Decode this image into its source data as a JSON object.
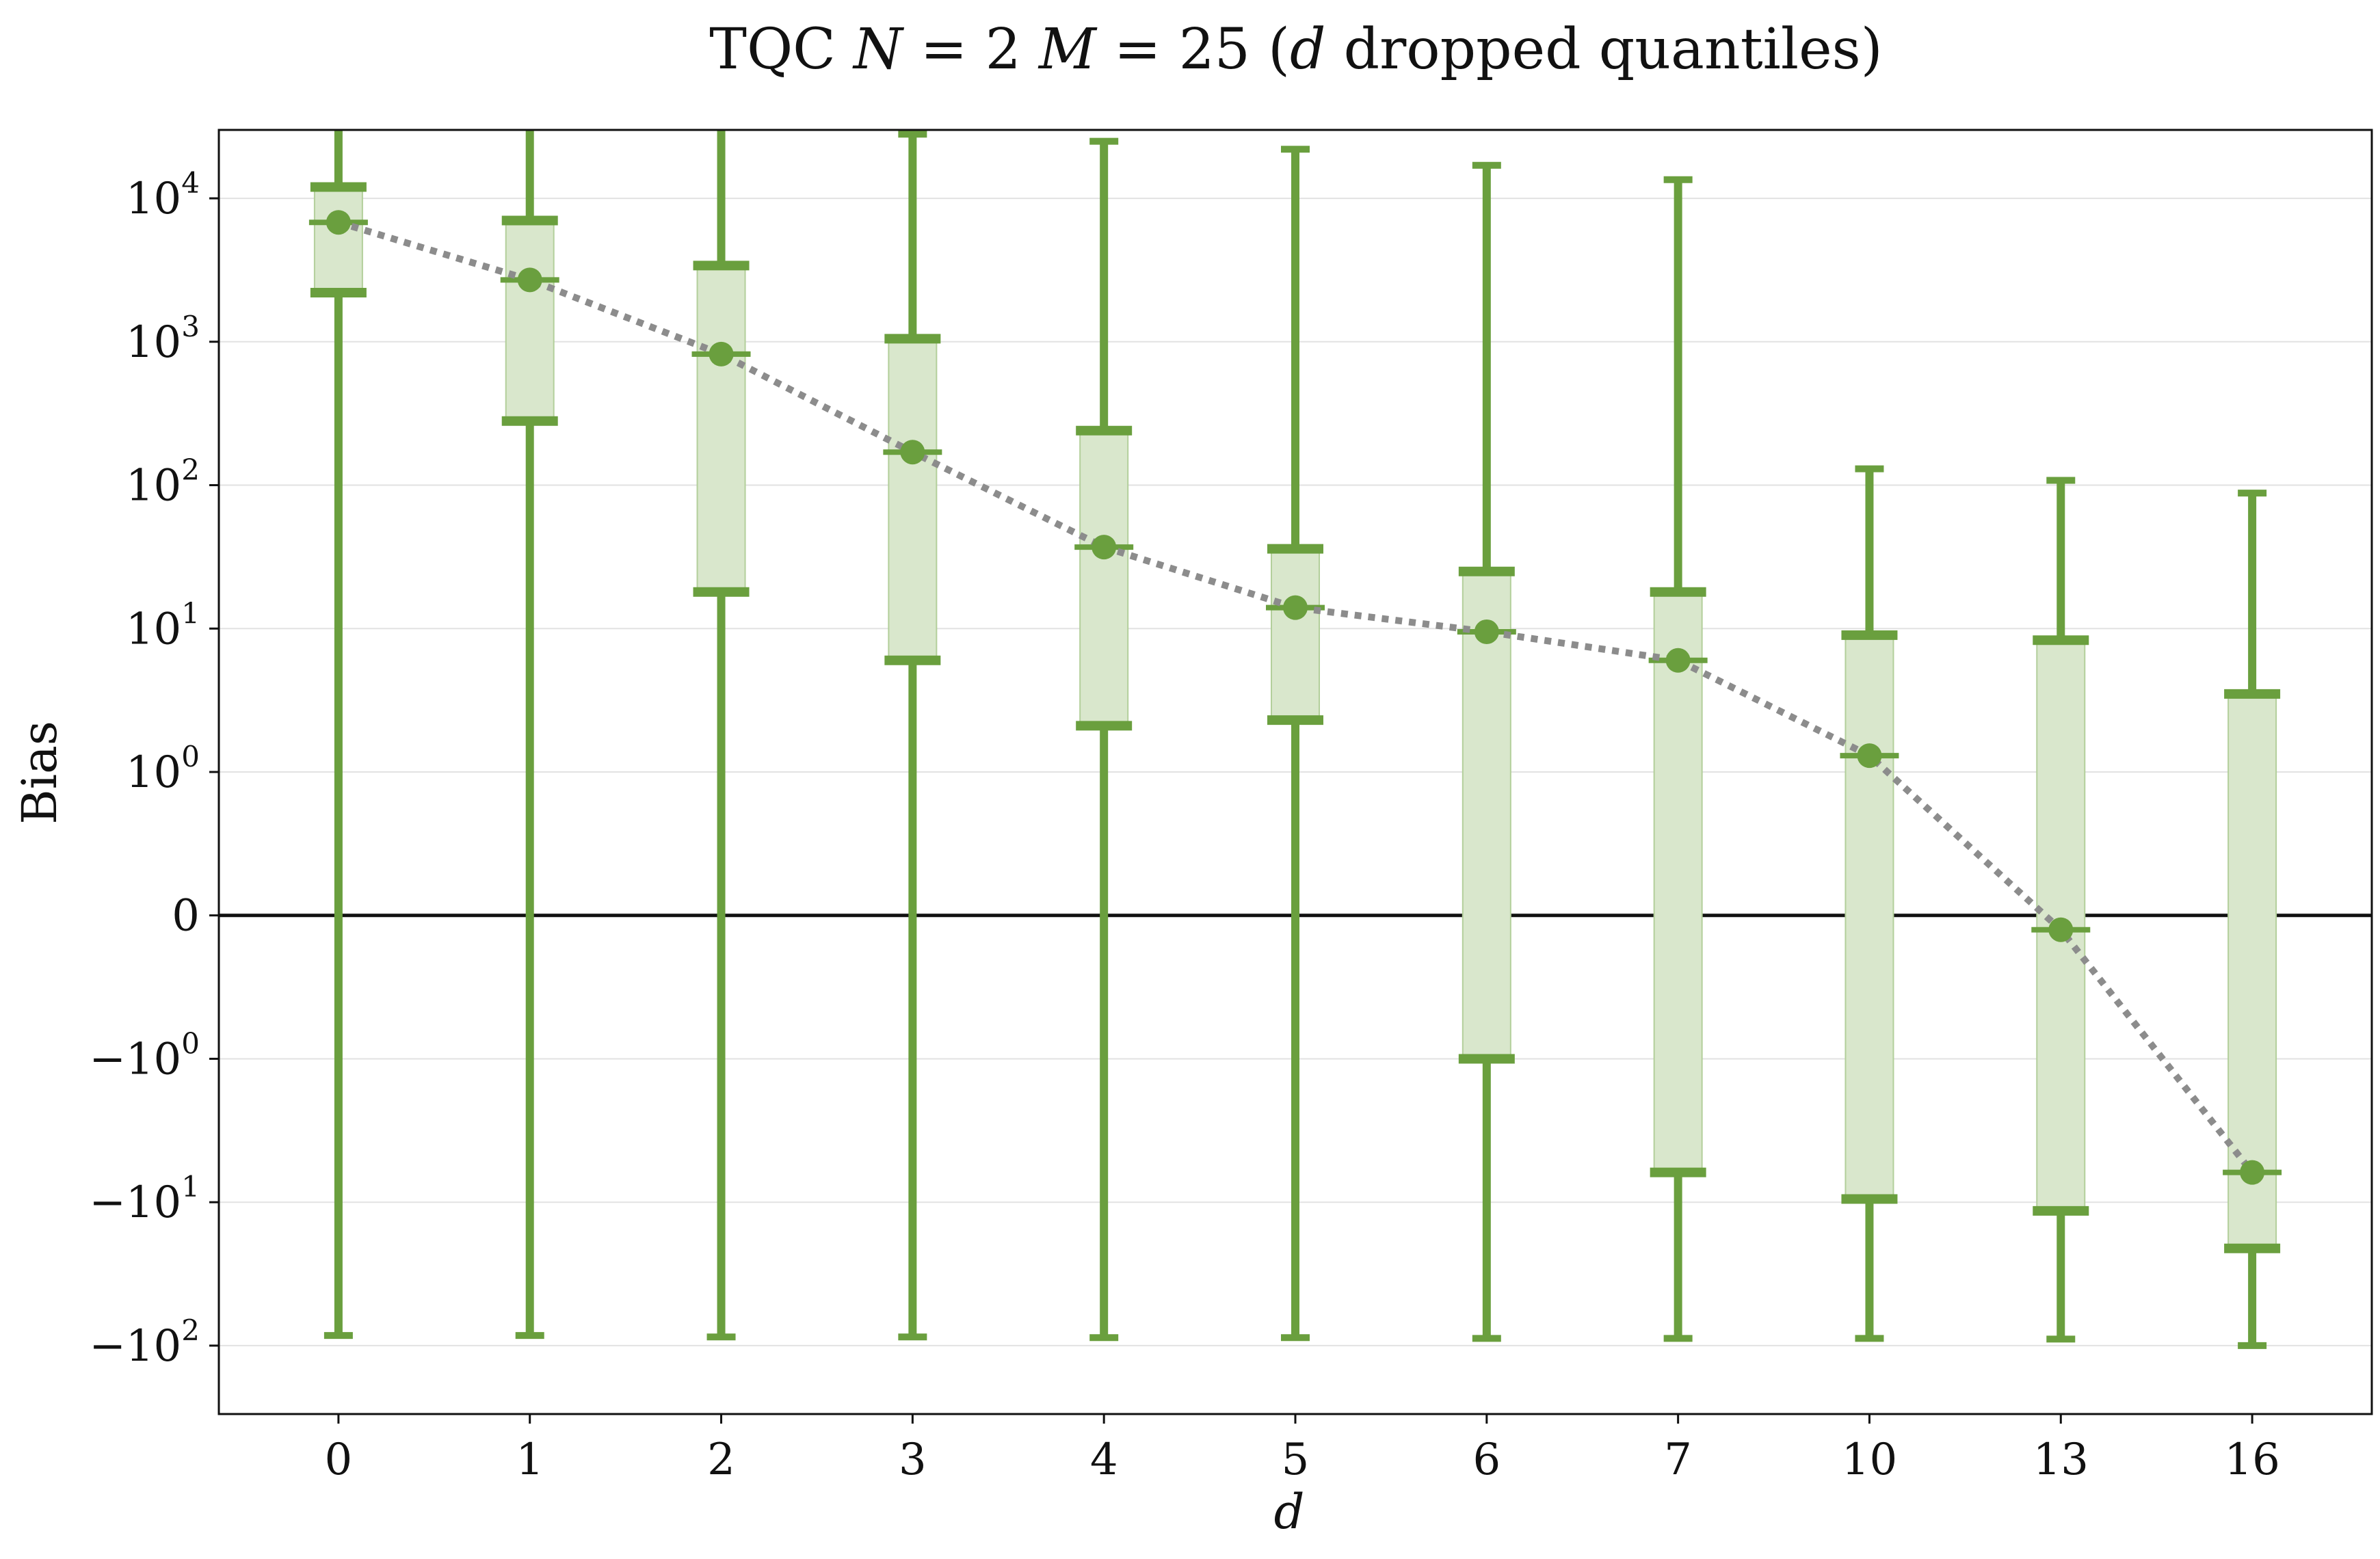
{
  "chart_data": {
    "type": "box",
    "title": "TQC N = 2 M = 25 (d dropped quantiles)",
    "title_parts": {
      "prefix": "TQC ",
      "N": "N",
      "eq1": " = 2 ",
      "M": "M",
      "eq2": " = 25 (",
      "d": "d",
      "suffix": " dropped quantiles)"
    },
    "xlabel": "d",
    "ylabel": "Bias",
    "yscale": "symlog",
    "yscale_linthresh": 1,
    "ylim": [
      -300,
      30000
    ],
    "ytick_labels": [
      {
        "value": 10000,
        "base": "10",
        "exp": "4"
      },
      {
        "value": 1000,
        "base": "10",
        "exp": "3"
      },
      {
        "value": 100,
        "base": "10",
        "exp": "2"
      },
      {
        "value": 10,
        "base": "10",
        "exp": "1"
      },
      {
        "value": 1,
        "base": "10",
        "exp": "0"
      },
      {
        "value": 0,
        "base": "0",
        "exp": ""
      },
      {
        "value": -1,
        "base": "−10",
        "exp": "0"
      },
      {
        "value": -10,
        "base": "−10",
        "exp": "1"
      },
      {
        "value": -100,
        "base": "−10",
        "exp": "2"
      }
    ],
    "categories": [
      "0",
      "1",
      "2",
      "3",
      "4",
      "5",
      "6",
      "7",
      "10",
      "13",
      "16"
    ],
    "whisker_low": [
      -85,
      -85,
      -87,
      -87,
      -88,
      -88,
      -89,
      -89,
      -89,
      -90,
      -100
    ],
    "q1": [
      2200,
      280,
      18,
      6,
      2.1,
      2.3,
      -1.0,
      -6.2,
      -9.5,
      -11.5,
      -21
    ],
    "median": [
      6800,
      2700,
      820,
      170,
      37,
      14,
      9.5,
      6,
      1.3,
      -0.1,
      -6.2
    ],
    "mean": [
      6800,
      2700,
      820,
      170,
      37,
      14,
      9.5,
      6,
      1.3,
      -0.1,
      -6.2
    ],
    "q3": [
      12000,
      7000,
      3400,
      1050,
      240,
      36,
      25,
      18,
      9,
      8.3,
      3.5
    ],
    "whisker_high": [
      30000,
      30000,
      30000,
      28000,
      25000,
      22000,
      17000,
      13500,
      130,
      108,
      88
    ],
    "color": "#6a9f3e",
    "box_fill": "#d9e7cc",
    "mean_line_color": "#8c8c8c",
    "zero_line_color": "#111111",
    "grid": true
  }
}
